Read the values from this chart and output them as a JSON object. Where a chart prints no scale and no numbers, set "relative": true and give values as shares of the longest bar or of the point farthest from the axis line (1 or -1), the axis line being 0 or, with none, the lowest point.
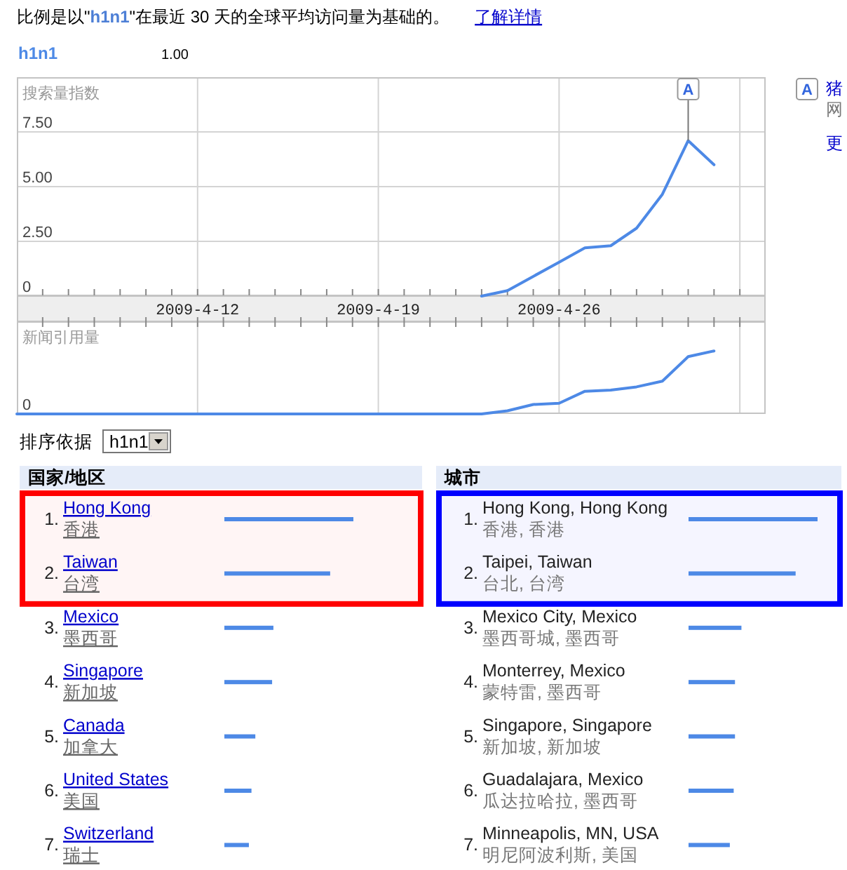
{
  "chart_data": [
    {
      "type": "line",
      "title": "比例是以\"h1n1\"在最近 30 天的全球平均访问量为基础的。",
      "ylabel": "搜索量指数",
      "x": [
        "2009-04-23",
        "2009-04-24",
        "2009-04-25",
        "2009-04-26",
        "2009-04-27",
        "2009-04-28",
        "2009-04-29",
        "2009-04-30",
        "2009-05-01",
        "2009-05-02"
      ],
      "series": [
        {
          "name": "h1n1",
          "color": "#4d89e6",
          "values": [
            0,
            0.25,
            0.9,
            1.55,
            2.2,
            2.3,
            3.1,
            4.65,
            7.1,
            6.0
          ]
        }
      ],
      "xlim": [
        "2009-04-05",
        "2009-05-04"
      ],
      "xticks": [
        {
          "value": "2009-04-12",
          "label": "2009-4-12"
        },
        {
          "value": "2009-04-19",
          "label": "2009-4-19"
        },
        {
          "value": "2009-04-26",
          "label": "2009-4-26"
        },
        {
          "value": "2009-05-03",
          "label": null
        }
      ],
      "ylim": [
        0,
        10
      ],
      "yticks": [
        0,
        {
          "value": 2.5,
          "label": "2.50"
        },
        {
          "value": 5,
          "label": "5.00"
        },
        {
          "value": 7.5,
          "label": "7.50"
        }
      ],
      "grid": true,
      "legend": "top left",
      "annotations": [
        {
          "text": "A",
          "x": "2009-05-01",
          "y": 7.1
        },
        "1.00",
        "了解详情",
        "A",
        "猪",
        "网",
        "更"
      ]
    },
    {
      "type": "line",
      "ylabel": "新闻引用量",
      "relative": true,
      "x": [
        "2009-04-05",
        "2009-04-06",
        "2009-04-07",
        "2009-04-08",
        "2009-04-09",
        "2009-04-10",
        "2009-04-11",
        "2009-04-12",
        "2009-04-13",
        "2009-04-14",
        "2009-04-15",
        "2009-04-16",
        "2009-04-17",
        "2009-04-18",
        "2009-04-19",
        "2009-04-20",
        "2009-04-21",
        "2009-04-22",
        "2009-04-23",
        "2009-04-24",
        "2009-04-25",
        "2009-04-26",
        "2009-04-27",
        "2009-04-28",
        "2009-04-29",
        "2009-04-30",
        "2009-05-01",
        "2009-05-02"
      ],
      "series": [
        {
          "color": "#4d89e6",
          "values": [
            0,
            0,
            0,
            0,
            0,
            0,
            0,
            0,
            0,
            0,
            0,
            0,
            0,
            0,
            0,
            0,
            0,
            0,
            0,
            0.05,
            0.15,
            0.17,
            0.36,
            0.38,
            0.43,
            0.52,
            0.91,
            1
          ]
        }
      ],
      "xlim": [
        "2009-04-05",
        "2009-05-04"
      ],
      "xticks": [
        "2009-04-12",
        "2009-04-19",
        "2009-04-26",
        "2009-05-03"
      ],
      "tick_labels": false,
      "grid": "x",
      "annotations": [
        "0"
      ]
    },
    {
      "type": "bar",
      "orientation": "horizontal",
      "relative": true,
      "title": "国家/地区",
      "categories": [
        "1. Hong Kong\n香港",
        "2. Taiwan\n台湾",
        "3. Mexico\n墨西哥",
        "4. Singapore\n新加坡",
        "5. Canada\n加拿大",
        "6. United States\n美国",
        "7. Switzerland\n瑞士"
      ],
      "values": [
        1,
        0.82,
        0.38,
        0.37,
        0.24,
        0.21,
        0.19
      ],
      "color": "#4d89e6",
      "bands": [
        {
          "axis": "y",
          "from": "1. Hong Kong\n香港",
          "to": "2. Taiwan\n台湾",
          "color": "#ff0000"
        }
      ],
      "annotations": [
        "排序依据",
        "h1n1"
      ]
    },
    {
      "type": "bar",
      "orientation": "horizontal",
      "relative": true,
      "title": "城市",
      "categories": [
        "1. Hong Kong, Hong Kong\n香港, 香港",
        "2. Taipei, Taiwan\n台北, 台湾",
        "3. Mexico City, Mexico\n墨西哥城, 墨西哥",
        "4. Monterrey, Mexico\n蒙特雷, 墨西哥",
        "5. Singapore, Singapore\n新加坡, 新加坡",
        "6. Guadalajara, Mexico\n瓜达拉哈拉, 墨西哥",
        "7. Minneapolis, MN, USA\n明尼阿波利斯, 美国"
      ],
      "values": [
        1,
        0.83,
        0.41,
        0.36,
        0.36,
        0.35,
        0.32
      ],
      "color": "#4d89e6",
      "bands": [
        {
          "axis": "y",
          "from": "1. Hong Kong, Hong Kong\n香港, 香港",
          "to": "2. Taipei, Taiwan\n台北, 台湾",
          "color": "#0000ff"
        }
      ]
    }
  ]
}
